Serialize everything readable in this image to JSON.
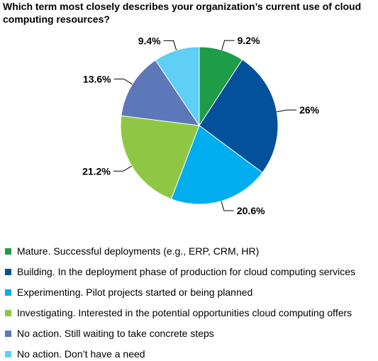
{
  "chart_data": {
    "type": "pie",
    "title": "Which term most closely describes your organization’s current use of cloud computing resources?",
    "slices": [
      {
        "label": "Mature. Successful deployments (e.g., ERP, CRM, HR)",
        "value": 9.2,
        "value_label": "9.2%",
        "color": "#1e9c48"
      },
      {
        "label": "Building. In the deployment phase of production for cloud computing services",
        "value": 26,
        "value_label": "26%",
        "color": "#03509b"
      },
      {
        "label": "Experimenting. Pilot projects started or being planned",
        "value": 20.6,
        "value_label": "20.6%",
        "color": "#00adef"
      },
      {
        "label": "Investigating. Interested in the potential opportunities cloud computing offers",
        "value": 21.2,
        "value_label": "21.2%",
        "color": "#8fc744"
      },
      {
        "label": "No action. Still waiting to take concrete steps",
        "value": 13.6,
        "value_label": "13.6%",
        "color": "#5d77b8"
      },
      {
        "label": "No action. Don’t have a need",
        "value": 9.4,
        "value_label": "9.4%",
        "color": "#5fcff6"
      }
    ],
    "legend_position": "bottom",
    "start_angle": "12 o'clock, clockwise"
  }
}
